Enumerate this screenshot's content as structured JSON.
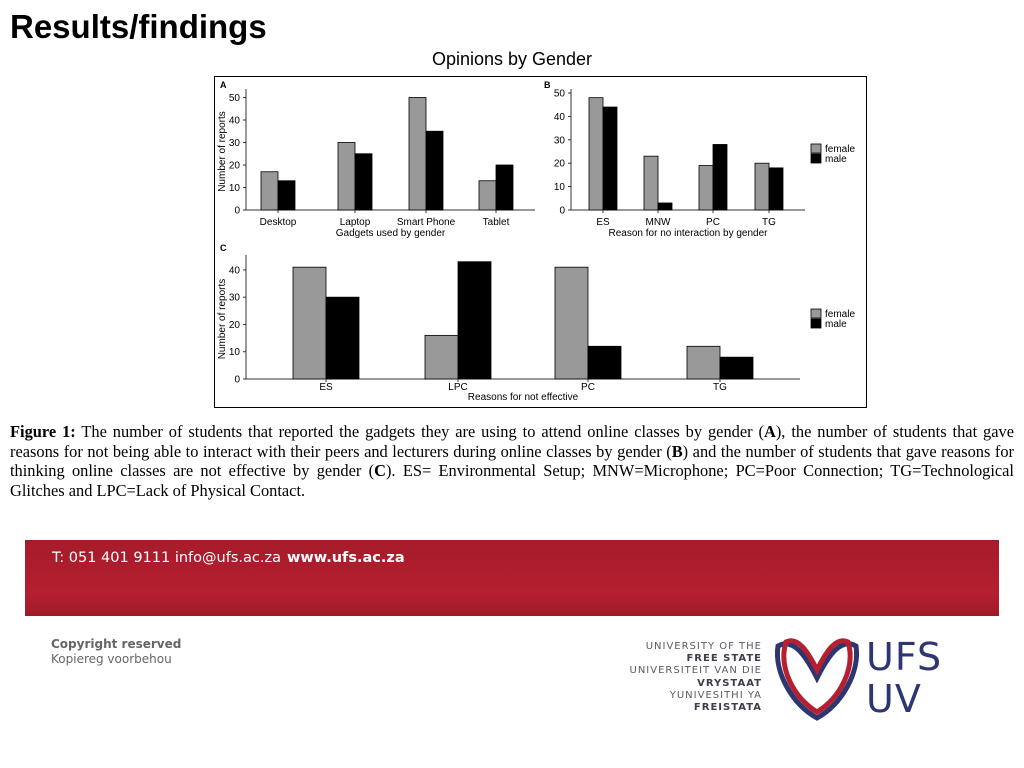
{
  "slide": {
    "title": "Results/findings",
    "chart_heading": "Opinions by Gender"
  },
  "chart_data": [
    {
      "panel": "A",
      "type": "bar",
      "xlabel": "Gadgets used by gender",
      "ylabel": "Number of reports",
      "categories": [
        "Desktop",
        "Laptop",
        "Smart Phone",
        "Tablet"
      ],
      "series": [
        {
          "name": "female",
          "color": "#999999",
          "values": [
            17,
            30,
            50,
            13
          ]
        },
        {
          "name": "male",
          "color": "#000000",
          "values": [
            13,
            25,
            35,
            20
          ]
        }
      ],
      "yticks": [
        0,
        10,
        20,
        30,
        40,
        50
      ],
      "ylim": [
        0,
        52
      ],
      "grid": false,
      "legend": "none"
    },
    {
      "panel": "B",
      "type": "bar",
      "xlabel": "Reason for no interaction by gender",
      "ylabel": "",
      "categories": [
        "ES",
        "MNW",
        "PC",
        "TG"
      ],
      "series": [
        {
          "name": "female",
          "color": "#999999",
          "values": [
            48,
            23,
            19,
            20
          ]
        },
        {
          "name": "male",
          "color": "#000000",
          "values": [
            44,
            3,
            28,
            18
          ]
        }
      ],
      "yticks": [
        0,
        10,
        20,
        30,
        40,
        50
      ],
      "ylim": [
        0,
        50
      ],
      "grid": false,
      "legend": "right",
      "legend_entries": [
        "female",
        "male"
      ]
    },
    {
      "panel": "C",
      "type": "bar",
      "xlabel": "Reasons for not effective",
      "ylabel": "Number of reports",
      "categories": [
        "ES",
        "LPC",
        "PC",
        "TG"
      ],
      "series": [
        {
          "name": "female",
          "color": "#999999",
          "values": [
            41,
            16,
            41,
            12
          ]
        },
        {
          "name": "male",
          "color": "#000000",
          "values": [
            30,
            43,
            12,
            8
          ]
        }
      ],
      "yticks": [
        0,
        10,
        20,
        30,
        40
      ],
      "ylim": [
        0,
        44
      ],
      "grid": false,
      "legend": "right",
      "legend_entries": [
        "female",
        "male"
      ]
    }
  ],
  "caption": {
    "label": "Figure 1:",
    "part1": " The number of students that reported the gadgets they are using to attend online classes by gender (",
    "bold_a": "A",
    "part2": "), the number of students that gave reasons for not being able to interact with their peers and lecturers during online classes by gender (",
    "bold_b": "B",
    "part3": ") and the number of students that gave reasons for thinking online classes are not effective by gender (",
    "bold_c": "C",
    "part4": "). ES= Environmental Setup; MNW=Microphone; PC=Poor Connection; TG=Technological Glitches and LPC=Lack of Physical Contact."
  },
  "footer": {
    "contact": "T: 051 401 9111  info@ufs.ac.za",
    "website": "www.ufs.ac.za",
    "copyright_en": "Copyright reserved",
    "copyright_af": "Kopiereg voorbehou",
    "university_lines": [
      {
        "text": "UNIVERSITY OF THE",
        "bold": false
      },
      {
        "text": "FREE STATE",
        "bold": true
      },
      {
        "text": "UNIVERSITEIT VAN DIE",
        "bold": false
      },
      {
        "text": "VRYSTAAT",
        "bold": true
      },
      {
        "text": "YUNIVESITHI YA",
        "bold": false
      },
      {
        "text": "FREISTATA",
        "bold": true
      }
    ],
    "logo_line1": "UFS",
    "logo_line2": "UV",
    "colors": {
      "band": "#b51f30",
      "logo_blue": "#2d3670",
      "logo_red": "#b51f30"
    }
  }
}
